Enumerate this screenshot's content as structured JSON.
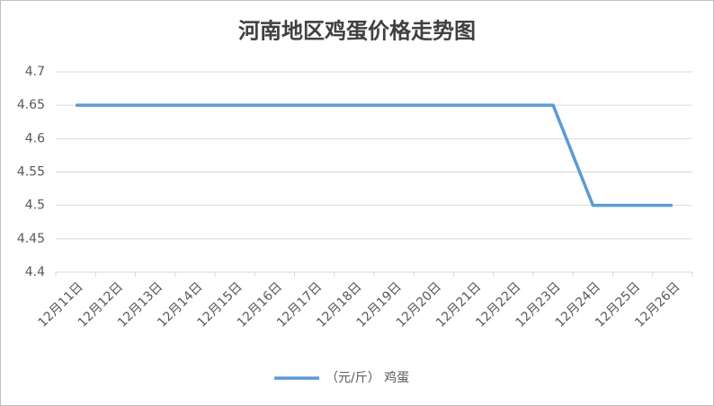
{
  "chart_data": {
    "type": "line",
    "title": "河南地区鸡蛋价格走势图",
    "categories": [
      "12月11日",
      "12月12日",
      "12月13日",
      "12月14日",
      "12月15日",
      "12月16日",
      "12月17日",
      "12月18日",
      "12月19日",
      "12月20日",
      "12月21日",
      "12月22日",
      "12月23日",
      "12月24日",
      "12月25日",
      "12月26日"
    ],
    "series": [
      {
        "name": "（元/斤） 鸡蛋",
        "color": "#5b9bd5",
        "values": [
          4.65,
          4.65,
          4.65,
          4.65,
          4.65,
          4.65,
          4.65,
          4.65,
          4.65,
          4.65,
          4.65,
          4.65,
          4.65,
          4.5,
          4.5,
          4.5
        ]
      }
    ],
    "ylim": [
      4.4,
      4.7
    ],
    "yticks": [
      4.4,
      4.45,
      4.5,
      4.55,
      4.6,
      4.65,
      4.7
    ],
    "grid": true,
    "legend": "bottom"
  }
}
